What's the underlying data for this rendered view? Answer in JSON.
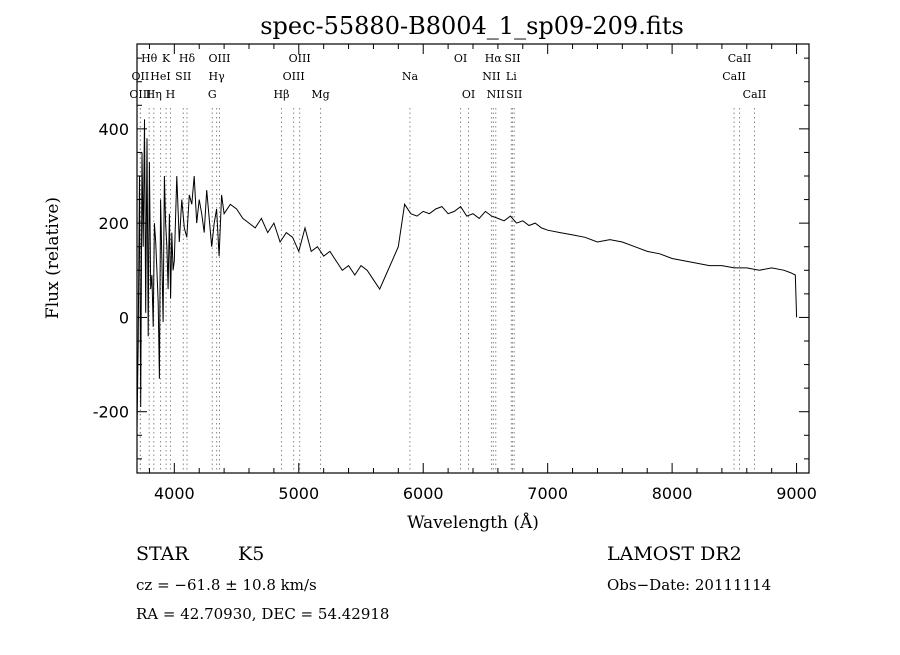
{
  "chart_data": {
    "type": "line",
    "title": "spec-55880-B8004_1_sp09-209.fits",
    "xlabel": "Wavelength (Å)",
    "ylabel": "Flux (relative)",
    "xlim": [
      3700,
      9100
    ],
    "ylim": [
      -330,
      580
    ],
    "xticks": [
      4000,
      5000,
      6000,
      7000,
      8000,
      9000
    ],
    "yticks": [
      -200,
      0,
      200,
      400
    ],
    "grid": false,
    "series": [
      {
        "x": [
          3700,
          3710,
          3720,
          3730,
          3740,
          3750,
          3760,
          3770,
          3780,
          3790,
          3800,
          3810,
          3820,
          3830,
          3840,
          3850,
          3860,
          3870,
          3880,
          3890,
          3900,
          3910,
          3920,
          3930,
          3940,
          3950,
          3960,
          3970,
          3980,
          3990,
          4000,
          4020,
          4040,
          4060,
          4080,
          4100,
          4120,
          4140,
          4160,
          4180,
          4200,
          4220,
          4240,
          4260,
          4280,
          4300,
          4320,
          4340,
          4360,
          4380,
          4400,
          4450,
          4500,
          4550,
          4600,
          4650,
          4700,
          4750,
          4800,
          4850,
          4900,
          4950,
          5000,
          5050,
          5100,
          5150,
          5200,
          5250,
          5300,
          5350,
          5400,
          5450,
          5500,
          5550,
          5600,
          5650,
          5700,
          5750,
          5800,
          5850,
          5900,
          5950,
          6000,
          6050,
          6100,
          6150,
          6200,
          6250,
          6300,
          6350,
          6400,
          6450,
          6500,
          6550,
          6600,
          6650,
          6700,
          6750,
          6800,
          6850,
          6900,
          6950,
          7000,
          7100,
          7200,
          7300,
          7400,
          7500,
          7600,
          7700,
          7800,
          7900,
          8000,
          8100,
          8200,
          8300,
          8400,
          8500,
          8600,
          8700,
          8800,
          8900,
          8950,
          8990,
          9000
        ],
        "y": [
          -240,
          -50,
          300,
          -190,
          350,
          150,
          420,
          10,
          380,
          -40,
          330,
          60,
          90,
          -20,
          200,
          160,
          100,
          30,
          -130,
          250,
          120,
          -10,
          300,
          200,
          150,
          60,
          220,
          40,
          180,
          100,
          120,
          300,
          160,
          250,
          190,
          170,
          260,
          240,
          300,
          200,
          250,
          220,
          180,
          270,
          210,
          150,
          200,
          230,
          130,
          260,
          220,
          240,
          230,
          210,
          200,
          190,
          210,
          180,
          200,
          160,
          180,
          170,
          140,
          190,
          140,
          150,
          130,
          140,
          120,
          100,
          110,
          90,
          110,
          100,
          80,
          60,
          90,
          120,
          150,
          240,
          220,
          215,
          225,
          220,
          230,
          235,
          220,
          225,
          235,
          215,
          220,
          210,
          225,
          215,
          210,
          205,
          215,
          200,
          205,
          195,
          200,
          190,
          185,
          180,
          175,
          170,
          160,
          165,
          160,
          150,
          140,
          135,
          125,
          120,
          115,
          110,
          110,
          105,
          105,
          100,
          105,
          100,
          95,
          90,
          0
        ]
      }
    ],
    "lines": [
      {
        "name": "Hθ",
        "x": 3798,
        "color": "black",
        "row": 0
      },
      {
        "name": "K",
        "x": 3934,
        "color": "black",
        "row": 0
      },
      {
        "name": "Hδ",
        "x": 4102,
        "color": "black",
        "row": 0
      },
      {
        "name": "OIII",
        "x": 4363,
        "color": "black",
        "row": 0
      },
      {
        "name": "OIII",
        "x": 5007,
        "color": "black",
        "row": 0
      },
      {
        "name": "OI",
        "x": 6300,
        "color": "black",
        "row": 0
      },
      {
        "name": "Hα",
        "x": 6563,
        "color": "black",
        "row": 0
      },
      {
        "name": "SII",
        "x": 6717,
        "color": "black",
        "row": 0
      },
      {
        "name": "CaII",
        "x": 8542,
        "color": "black",
        "row": 0
      },
      {
        "name": "OII",
        "x": 3727,
        "color": "black",
        "row": 1
      },
      {
        "name": "HeI",
        "x": 3889,
        "color": "black",
        "row": 1
      },
      {
        "name": "SII",
        "x": 4072,
        "color": "black",
        "row": 1
      },
      {
        "name": "Hγ",
        "x": 4340,
        "color": "black",
        "row": 1
      },
      {
        "name": "OIII",
        "x": 4959,
        "color": "black",
        "row": 1
      },
      {
        "name": "Na",
        "x": 5893,
        "color": "black",
        "row": 1
      },
      {
        "name": "NII",
        "x": 6548,
        "color": "black",
        "row": 1
      },
      {
        "name": "Li",
        "x": 6708,
        "color": "black",
        "row": 1
      },
      {
        "name": "CaII",
        "x": 8498,
        "color": "black",
        "row": 1
      },
      {
        "name": "OIII",
        "x": 3727,
        "color": "black",
        "row": 2
      },
      {
        "name": "Hη",
        "x": 3835,
        "color": "black",
        "row": 2
      },
      {
        "name": "H",
        "x": 3969,
        "color": "black",
        "row": 2
      },
      {
        "name": "G",
        "x": 4305,
        "color": "black",
        "row": 2
      },
      {
        "name": "Hβ",
        "x": 4861,
        "color": "black",
        "row": 2
      },
      {
        "name": "Mg",
        "x": 5175,
        "color": "black",
        "row": 2
      },
      {
        "name": "OI",
        "x": 6364,
        "color": "black",
        "row": 2
      },
      {
        "name": "NII",
        "x": 6583,
        "color": "black",
        "row": 2
      },
      {
        "name": "SII",
        "x": 6731,
        "color": "black",
        "row": 2
      },
      {
        "name": "CaII",
        "x": 8662,
        "color": "black",
        "row": 2
      }
    ],
    "line_colors": {
      "black": "#8a8a8a",
      "red": "#c0392b"
    }
  },
  "footer": {
    "object_type": "STAR",
    "subclass": "K5",
    "survey": "LAMOST DR2",
    "cz": "cz = −61.8 ± 10.8 km/s",
    "obs_date": "Obs−Date: 20111114",
    "coords": "RA =  42.70930, DEC =  54.42918"
  }
}
